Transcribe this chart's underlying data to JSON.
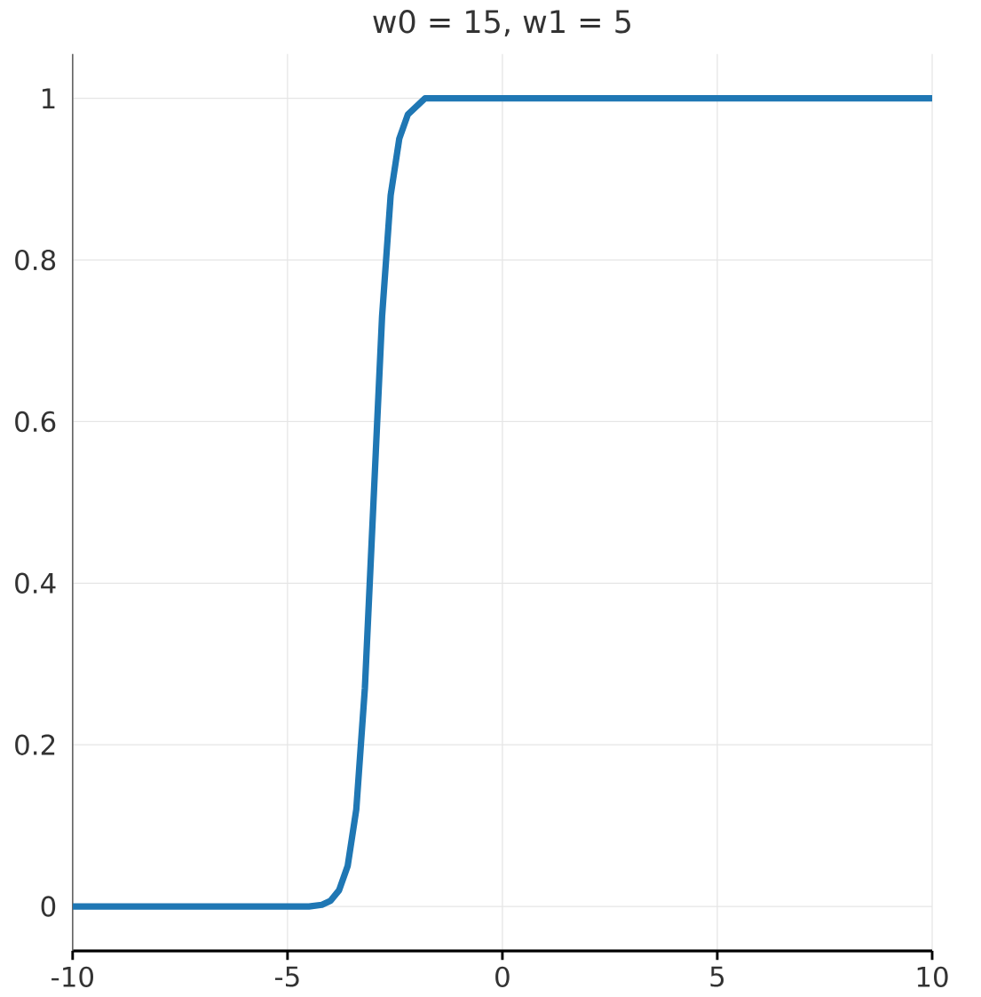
{
  "chart_data": {
    "type": "line",
    "title": "w0 = 15, w1 = 5",
    "x": [
      -10,
      -8,
      -6,
      -5,
      -4.5,
      -4.2,
      -4,
      -3.8,
      -3.6,
      -3.4,
      -3.2,
      -3,
      -2.8,
      -2.6,
      -2.4,
      -2.2,
      -2,
      -1.8,
      -1.5,
      -1,
      0,
      2,
      5,
      8,
      10
    ],
    "values": [
      0,
      0,
      0,
      0,
      0,
      0.002,
      0.007,
      0.02,
      0.05,
      0.12,
      0.27,
      0.5,
      0.73,
      0.88,
      0.95,
      0.98,
      0.99,
      1,
      1,
      1,
      1,
      1,
      1,
      1,
      1
    ],
    "color": "#1f77b4",
    "xlim": [
      -10,
      10
    ],
    "ylim": [
      -0.055,
      1.055
    ],
    "xticks": [
      -10,
      -5,
      0,
      5,
      10
    ],
    "yticks": [
      0,
      0.2,
      0.4,
      0.6,
      0.8,
      1
    ],
    "grid": true
  }
}
